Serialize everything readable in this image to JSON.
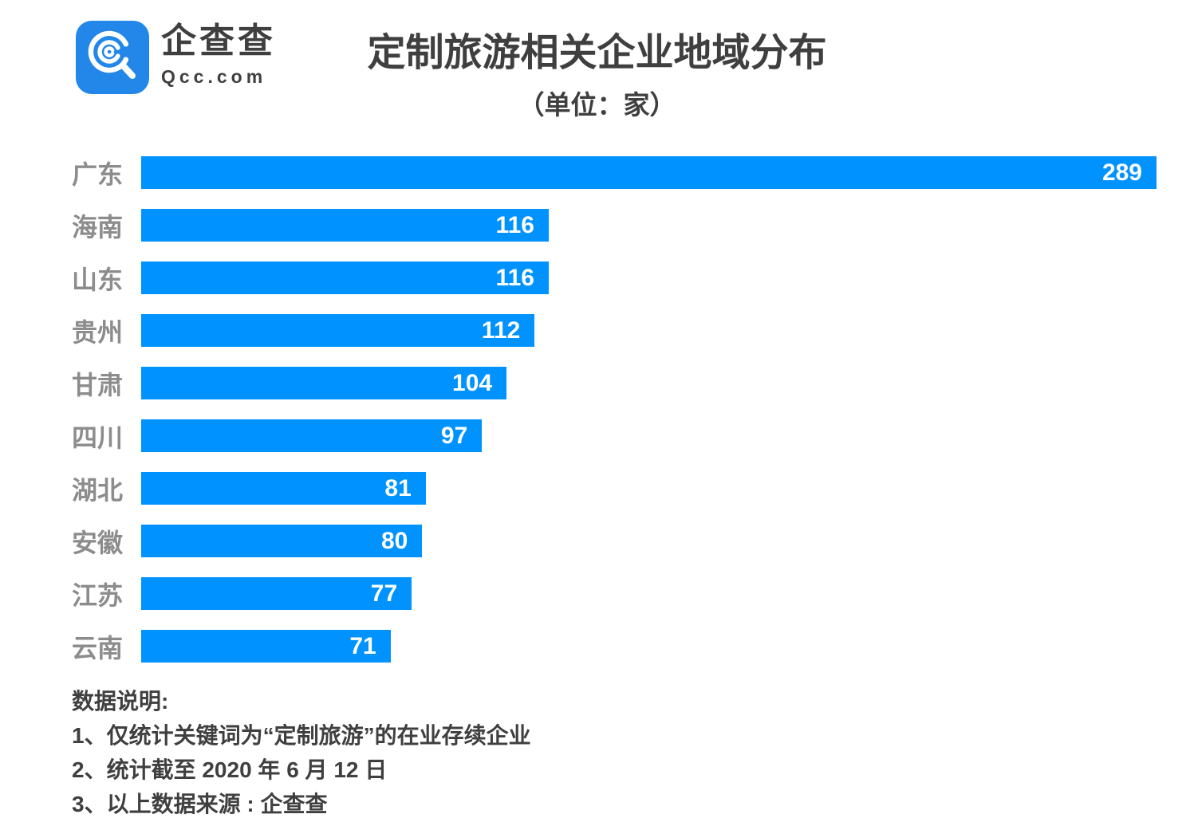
{
  "brand": {
    "name": "企查查",
    "domain": "Qcc.com",
    "logo_color": "#2287e8"
  },
  "chart_data": {
    "type": "bar",
    "orientation": "horizontal",
    "title": "定制旅游相关企业地域分布",
    "subtitle": "（单位：家）",
    "unit": "家",
    "categories": [
      "广东",
      "海南",
      "山东",
      "贵州",
      "甘肃",
      "四川",
      "湖北",
      "安徽",
      "江苏",
      "云南"
    ],
    "values": [
      289,
      116,
      116,
      112,
      104,
      97,
      81,
      80,
      77,
      71
    ],
    "xlim": [
      0,
      289
    ],
    "bar_color": "#0093ff",
    "value_label_color": "#ffffff",
    "category_label_color": "#8c8c8c",
    "value_labels_inside_bar": true,
    "grid": false,
    "legend": false
  },
  "footer": {
    "heading": "数据说明:",
    "notes": [
      "1、仅统计关键词为“定制旅游”的在业存续企业",
      "2、统计截至 2020 年 6 月 12 日",
      "3、以上数据来源 : 企查查"
    ]
  },
  "colors": {
    "bar_blue": "#0093ff",
    "logo_blue": "#2287e8",
    "text_dark": "#3f3f3f",
    "label_gray": "#8c8c8c"
  }
}
